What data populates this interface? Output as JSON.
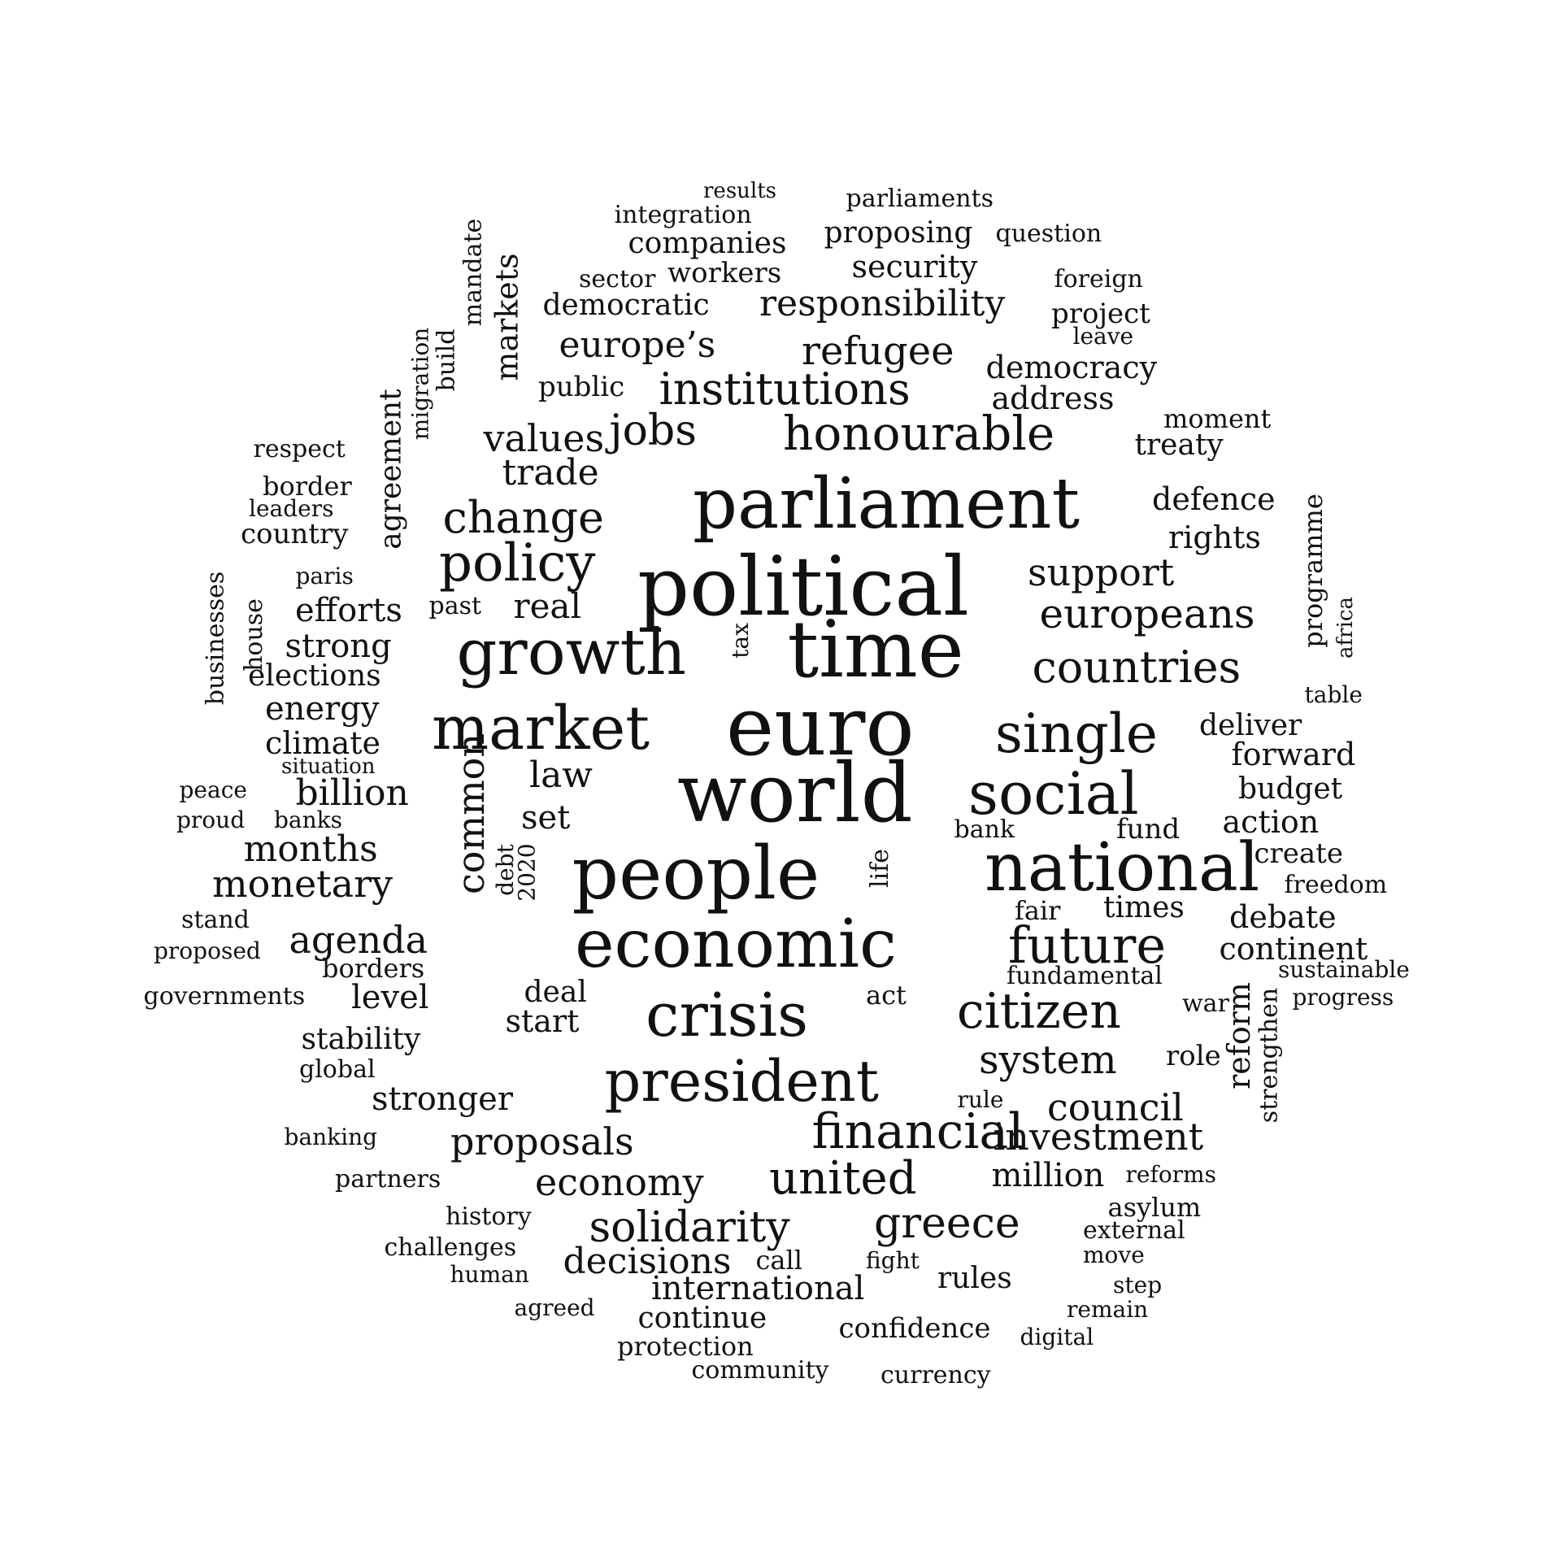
{
  "colors": {
    "background": "#ffffff",
    "text": "#111111"
  },
  "words": [
    {
      "text": "results"
    },
    {
      "text": "parliaments"
    },
    {
      "text": "integration"
    },
    {
      "text": "proposing"
    },
    {
      "text": "question"
    },
    {
      "text": "companies"
    },
    {
      "text": "mandate"
    },
    {
      "text": "markets"
    },
    {
      "text": "security"
    },
    {
      "text": "workers"
    },
    {
      "text": "sector"
    },
    {
      "text": "foreign"
    },
    {
      "text": "democratic"
    },
    {
      "text": "responsibility"
    },
    {
      "text": "project"
    },
    {
      "text": "leave"
    },
    {
      "text": "build"
    },
    {
      "text": "migration"
    },
    {
      "text": "europe’s"
    },
    {
      "text": "refugee"
    },
    {
      "text": "democracy"
    },
    {
      "text": "public"
    },
    {
      "text": "institutions"
    },
    {
      "text": "agreement"
    },
    {
      "text": "address"
    },
    {
      "text": "moment"
    },
    {
      "text": "values"
    },
    {
      "text": "jobs"
    },
    {
      "text": "honourable"
    },
    {
      "text": "treaty"
    },
    {
      "text": "respect"
    },
    {
      "text": "trade"
    },
    {
      "text": "programme"
    },
    {
      "text": "border"
    },
    {
      "text": "parliament"
    },
    {
      "text": "defence"
    },
    {
      "text": "leaders"
    },
    {
      "text": "change"
    },
    {
      "text": "country"
    },
    {
      "text": "rights"
    },
    {
      "text": "policy"
    },
    {
      "text": "political"
    },
    {
      "text": "support"
    },
    {
      "text": "businesses"
    },
    {
      "text": "house"
    },
    {
      "text": "paris"
    },
    {
      "text": "africa"
    },
    {
      "text": "efforts"
    },
    {
      "text": "past"
    },
    {
      "text": "real"
    },
    {
      "text": "tax"
    },
    {
      "text": "europeans"
    },
    {
      "text": "strong"
    },
    {
      "text": "growth"
    },
    {
      "text": "time"
    },
    {
      "text": "countries"
    },
    {
      "text": "elections"
    },
    {
      "text": "table"
    },
    {
      "text": "energy"
    },
    {
      "text": "market"
    },
    {
      "text": "euro"
    },
    {
      "text": "single"
    },
    {
      "text": "deliver"
    },
    {
      "text": "climate"
    },
    {
      "text": "forward"
    },
    {
      "text": "situation"
    },
    {
      "text": "law"
    },
    {
      "text": "world"
    },
    {
      "text": "social"
    },
    {
      "text": "billion"
    },
    {
      "text": "peace"
    },
    {
      "text": "budget"
    },
    {
      "text": "common"
    },
    {
      "text": "proud"
    },
    {
      "text": "banks"
    },
    {
      "text": "set"
    },
    {
      "text": "action"
    },
    {
      "text": "bank"
    },
    {
      "text": "fund"
    },
    {
      "text": "months"
    },
    {
      "text": "debt"
    },
    {
      "text": "life"
    },
    {
      "text": "create"
    },
    {
      "text": "2020"
    },
    {
      "text": "people"
    },
    {
      "text": "national"
    },
    {
      "text": "monetary"
    },
    {
      "text": "freedom"
    },
    {
      "text": "stand"
    },
    {
      "text": "fair"
    },
    {
      "text": "times"
    },
    {
      "text": "debate"
    },
    {
      "text": "agenda"
    },
    {
      "text": "economic"
    },
    {
      "text": "future"
    },
    {
      "text": "proposed"
    },
    {
      "text": "continent"
    },
    {
      "text": "borders"
    },
    {
      "text": "fundamental"
    },
    {
      "text": "sustainable"
    },
    {
      "text": "reform"
    },
    {
      "text": "governments"
    },
    {
      "text": "level"
    },
    {
      "text": "deal"
    },
    {
      "text": "act"
    },
    {
      "text": "progress"
    },
    {
      "text": "crisis"
    },
    {
      "text": "citizen"
    },
    {
      "text": "war"
    },
    {
      "text": "start"
    },
    {
      "text": "strengthen"
    },
    {
      "text": "stability"
    },
    {
      "text": "role"
    },
    {
      "text": "global"
    },
    {
      "text": "system"
    },
    {
      "text": "president"
    },
    {
      "text": "rule"
    },
    {
      "text": "stronger"
    },
    {
      "text": "council"
    },
    {
      "text": "financial"
    },
    {
      "text": "banking"
    },
    {
      "text": "proposals"
    },
    {
      "text": "investment"
    },
    {
      "text": "partners"
    },
    {
      "text": "million"
    },
    {
      "text": "reforms"
    },
    {
      "text": "united"
    },
    {
      "text": "economy"
    },
    {
      "text": "asylum"
    },
    {
      "text": "history"
    },
    {
      "text": "greece"
    },
    {
      "text": "solidarity"
    },
    {
      "text": "external"
    },
    {
      "text": "challenges"
    },
    {
      "text": "decisions"
    },
    {
      "text": "call"
    },
    {
      "text": "fight"
    },
    {
      "text": "move"
    },
    {
      "text": "human"
    },
    {
      "text": "rules"
    },
    {
      "text": "international"
    },
    {
      "text": "step"
    },
    {
      "text": "agreed"
    },
    {
      "text": "remain"
    },
    {
      "text": "continue"
    },
    {
      "text": "confidence"
    },
    {
      "text": "digital"
    },
    {
      "text": "protection"
    },
    {
      "text": "community"
    },
    {
      "text": "currency"
    }
  ]
}
